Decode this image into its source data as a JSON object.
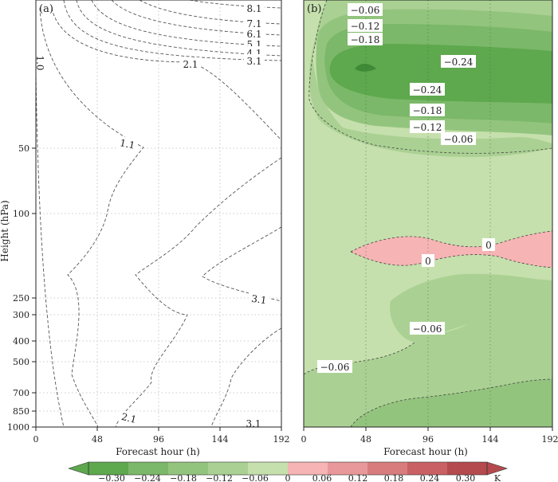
{
  "figure": {
    "panels": [
      "(a)",
      "(b)"
    ],
    "ylabel": "Height (hPa)",
    "xlabel": "Forecast hour (h)",
    "colorbar": {
      "ticks": [
        "−0.30",
        "−0.24",
        "−0.18",
        "−0.12",
        "−0.06",
        "0",
        "0.06",
        "0.12",
        "0.18",
        "0.24",
        "0.30"
      ],
      "unit": "K",
      "colors": [
        "#5ea84e",
        "#7bb869",
        "#93c47e",
        "#aad193",
        "#c6e0ad",
        "#f6b4b4",
        "#e8989a",
        "#d87c7e",
        "#c86064",
        "#b44a4e"
      ]
    }
  },
  "chart_data": [
    {
      "type": "contour",
      "panel": "(a)",
      "xlabel": "Forecast hour (h)",
      "ylabel": "Height (hPa)",
      "x_ticks": [
        0,
        48,
        96,
        144,
        192
      ],
      "xlim": [
        0,
        192
      ],
      "y_ticks": [
        50,
        100,
        250,
        300,
        400,
        500,
        700,
        850,
        1000
      ],
      "y_tick_labels": [
        "50",
        "100",
        "250",
        "300",
        "400",
        "500",
        "700",
        "850",
        "1000"
      ],
      "contour_labels": [
        "8.1",
        "7.1",
        "6.1",
        "5.1",
        "4.1",
        "3.1",
        "2.1",
        "1.1",
        "3.1",
        "2.1",
        "3.1",
        "1.0"
      ],
      "contour_levels": [
        1.1,
        2.1,
        3.1,
        4.1,
        5.1,
        6.1,
        7.1,
        8.1
      ],
      "line_style": "dashed"
    },
    {
      "type": "filled_contour",
      "panel": "(b)",
      "xlabel": "Forecast hour (h)",
      "x_ticks": [
        0,
        48,
        96,
        144,
        192
      ],
      "xlim": [
        0,
        192
      ],
      "contour_labels": [
        "−0.06",
        "−0.12",
        "−0.18",
        "−0.24",
        "−0.24",
        "−0.18",
        "−0.12",
        "−0.06",
        "0",
        "0",
        "−0.06",
        "−0.06"
      ],
      "levels": [
        -0.3,
        -0.24,
        -0.18,
        -0.12,
        -0.06,
        0,
        0.06,
        0.12,
        0.18,
        0.24,
        0.3
      ],
      "unit": "K"
    }
  ]
}
